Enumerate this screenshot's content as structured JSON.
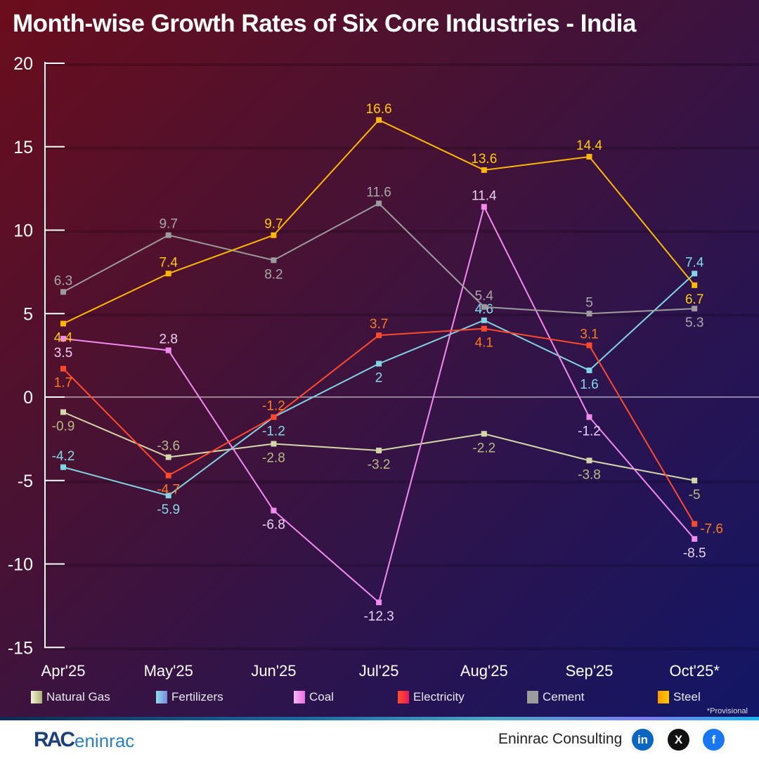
{
  "title": "Month-wise Growth Rates of Six Core Industries - India",
  "chart_data": {
    "type": "line",
    "title": "Month-wise Growth Rates of Six Core Industries - India",
    "xlabel": "",
    "ylabel": "",
    "categories": [
      "Apr'25",
      "May'25",
      "Jun'25",
      "Jul'25",
      "Aug'25",
      "Sep'25",
      "Oct'25*"
    ],
    "ylim": [
      -15,
      20
    ],
    "yticks": [
      20,
      15,
      10,
      5,
      0,
      -5,
      -10,
      -15
    ],
    "grid": true,
    "legend_placement": "bottom",
    "series": [
      {
        "name": "Natural Gas",
        "color": "#d4d8a8",
        "label_color": "#b8bb80",
        "values": [
          -0.9,
          -3.6,
          -2.8,
          -3.2,
          -2.2,
          -3.8,
          -5
        ]
      },
      {
        "name": "Fertilizers",
        "color": "#80d4e4",
        "label_color": "#80dce8",
        "values": [
          -4.2,
          -5.9,
          -1.2,
          2,
          4.6,
          1.6,
          7.4
        ]
      },
      {
        "name": "Coal",
        "color": "#f48af0",
        "label_color": "#ecd0f4",
        "values": [
          3.5,
          2.8,
          -6.8,
          -12.3,
          11.4,
          -1.2,
          -8.5
        ]
      },
      {
        "name": "Electricity",
        "color": "#ff4a2a",
        "label_color": "#ff7a1a",
        "values": [
          1.7,
          -4.7,
          -1.2,
          3.7,
          4.1,
          3.1,
          -7.6
        ]
      },
      {
        "name": "Cement",
        "color": "#9c9c9c",
        "label_color": "#a8a8a8",
        "values": [
          6.3,
          9.7,
          8.2,
          11.6,
          5.4,
          5,
          5.3
        ]
      },
      {
        "name": "Steel",
        "color": "#ffb800",
        "label_color": "#ffcc00",
        "values": [
          4.4,
          7.4,
          9.7,
          16.6,
          13.6,
          14.4,
          6.7
        ]
      }
    ],
    "annotations": [
      "*Provisional"
    ]
  },
  "footer": {
    "provisional_note": "*Provisional",
    "logo_text": "RACeninrac",
    "brand": "Eninrac Consulting",
    "social": [
      "linkedin-icon",
      "x-icon",
      "facebook-icon"
    ]
  }
}
